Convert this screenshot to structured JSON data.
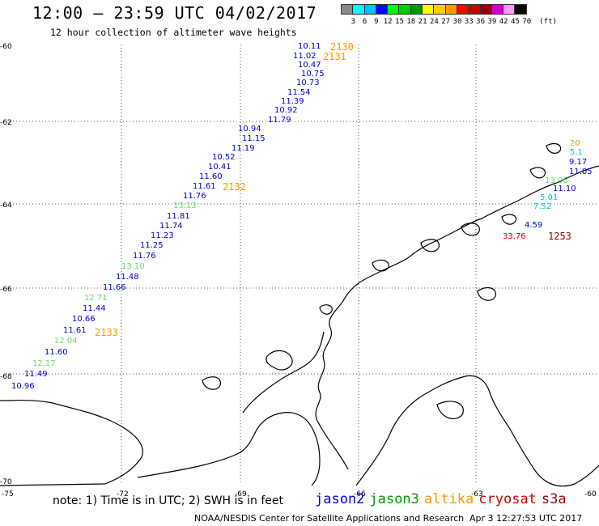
{
  "header": {
    "title": "12:00 — 23:59 UTC 04/02/2017",
    "subtitle": "12 hour collection of altimeter wave heights"
  },
  "colorbar": {
    "colors": [
      "#888888",
      "#00ffff",
      "#00bfff",
      "#0000ff",
      "#00ff00",
      "#00cc00",
      "#009900",
      "#ffff00",
      "#ffcc00",
      "#ff9900",
      "#ff0000",
      "#cc0000",
      "#990000",
      "#cc00cc",
      "#ff99ff",
      "#000000"
    ],
    "labels": [
      "3",
      "6",
      "9",
      "12",
      "15",
      "18",
      "21",
      "24",
      "27",
      "30",
      "33",
      "36",
      "39",
      "42",
      "45",
      "70",
      "(ft)"
    ]
  },
  "axes": {
    "lat_labels": [
      "-60",
      "-62",
      "-64",
      "-66",
      "-68",
      "-70"
    ],
    "lon_labels": [
      "-75",
      "-72",
      "-69",
      "-66",
      "-63",
      "-60"
    ]
  },
  "observations": [
    {
      "text": "10.11",
      "color": "#0000cc"
    },
    {
      "text": "11.02",
      "color": "#0000cc"
    },
    {
      "text": "10.47",
      "color": "#0000cc"
    },
    {
      "text": "10.75",
      "color": "#0000cc"
    },
    {
      "text": "10.73",
      "color": "#0000cc"
    },
    {
      "text": "11.54",
      "color": "#0000cc"
    },
    {
      "text": "11.39",
      "color": "#0000cc"
    },
    {
      "text": "10.92",
      "color": "#0000cc"
    },
    {
      "text": "11.79",
      "color": "#0000cc"
    },
    {
      "text": "10.94",
      "color": "#0000cc"
    },
    {
      "text": "11.15",
      "color": "#0000cc"
    },
    {
      "text": "11.19",
      "color": "#0000cc"
    },
    {
      "text": "10.52",
      "color": "#0000cc"
    },
    {
      "text": "10.41",
      "color": "#0000cc"
    },
    {
      "text": "11.60",
      "color": "#0000cc"
    },
    {
      "text": "11.61",
      "color": "#0000cc"
    },
    {
      "text": "11.76",
      "color": "#0000cc"
    },
    {
      "text": "13.13",
      "color": "#66dd66"
    },
    {
      "text": "11.81",
      "color": "#0000cc"
    },
    {
      "text": "11.74",
      "color": "#0000cc"
    },
    {
      "text": "11.23",
      "color": "#0000cc"
    },
    {
      "text": "11.25",
      "color": "#0000cc"
    },
    {
      "text": "11.76",
      "color": "#0000cc"
    },
    {
      "text": "13.10",
      "color": "#66dd66"
    },
    {
      "text": "11.48",
      "color": "#0000cc"
    },
    {
      "text": "11.66",
      "color": "#0000cc"
    },
    {
      "text": "12.71",
      "color": "#66dd66"
    },
    {
      "text": "11.44",
      "color": "#0000cc"
    },
    {
      "text": "10.66",
      "color": "#0000cc"
    },
    {
      "text": "11.61",
      "color": "#0000cc"
    },
    {
      "text": "12.04",
      "color": "#66dd66"
    },
    {
      "text": "11.60",
      "color": "#0000cc"
    },
    {
      "text": "12.17",
      "color": "#66dd66"
    },
    {
      "text": "11.49",
      "color": "#0000cc"
    },
    {
      "text": "10.96",
      "color": "#0000cc"
    },
    {
      "text": "9.17",
      "color": "#0000cc"
    },
    {
      "text": "11.05",
      "color": "#0000cc"
    },
    {
      "text": "13.06",
      "color": "#66dd66"
    },
    {
      "text": "11.10",
      "color": "#0000cc"
    },
    {
      "text": "5.01",
      "color": "#00cccc"
    },
    {
      "text": "7.52",
      "color": "#00cccc"
    },
    {
      "text": "4.59",
      "color": "#0000cc"
    },
    {
      "text": "33.76",
      "color": "#cc0000"
    },
    {
      "text": "5.1",
      "color": "#00cccc"
    },
    {
      "text": "20",
      "color": "#ff9900"
    }
  ],
  "passes": [
    {
      "text": "2130",
      "color": "#ff9900"
    },
    {
      "text": "2131",
      "color": "#ff9900"
    },
    {
      "text": "2132",
      "color": "#ff9900"
    },
    {
      "text": "2133",
      "color": "#ff9900"
    },
    {
      "text": "1253",
      "color": "#990000"
    }
  ],
  "footer": {
    "note": "note: 1) Time is in UTC; 2) SWH is in feet",
    "legend": [
      {
        "name": "jason2",
        "color": "#0000cc"
      },
      {
        "name": "jason3",
        "color": "#009900"
      },
      {
        "name": "altika",
        "color": "#ff9900"
      },
      {
        "name": "cryosat",
        "color": "#cc0000"
      },
      {
        "name": "s3a",
        "color": "#990000"
      }
    ],
    "credit": "NOAA/NESDIS Center for Satellite Applications and Research",
    "timestamp": "Apr  3 12:27:53 UTC 2017"
  }
}
